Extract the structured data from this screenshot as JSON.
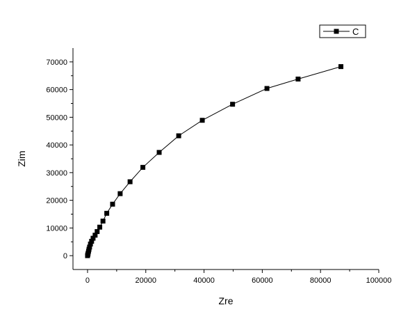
{
  "chart_data": {
    "type": "line",
    "xlabel": "Zre",
    "ylabel": "Zim",
    "xlim": [
      -5000,
      100000
    ],
    "ylim": [
      -5000,
      75000
    ],
    "xticks": [
      0,
      20000,
      40000,
      60000,
      80000,
      100000
    ],
    "yticks": [
      0,
      10000,
      20000,
      30000,
      40000,
      50000,
      60000,
      70000
    ],
    "xtick_labels": [
      "0",
      "20000",
      "40000",
      "60000",
      "80000",
      "100000"
    ],
    "ytick_labels": [
      "0",
      "10000",
      "20000",
      "30000",
      "40000",
      "50000",
      "60000",
      "70000"
    ],
    "grid": false,
    "legend_position": "top-right",
    "marker": "square",
    "series": [
      {
        "name": "C",
        "color": "#000000",
        "x": [
          0,
          100,
          200,
          350,
          500,
          700,
          1000,
          1400,
          1900,
          2600,
          3300,
          4200,
          5300,
          6600,
          8600,
          11200,
          14600,
          19000,
          24600,
          31300,
          39400,
          49800,
          61600,
          72300,
          87000
        ],
        "y": [
          0,
          400,
          900,
          1600,
          2300,
          3100,
          4200,
          5200,
          6300,
          7400,
          8700,
          10300,
          12500,
          15300,
          18600,
          22400,
          26700,
          31900,
          37300,
          43300,
          48900,
          54700,
          60400,
          63800,
          68300
        ]
      }
    ]
  }
}
